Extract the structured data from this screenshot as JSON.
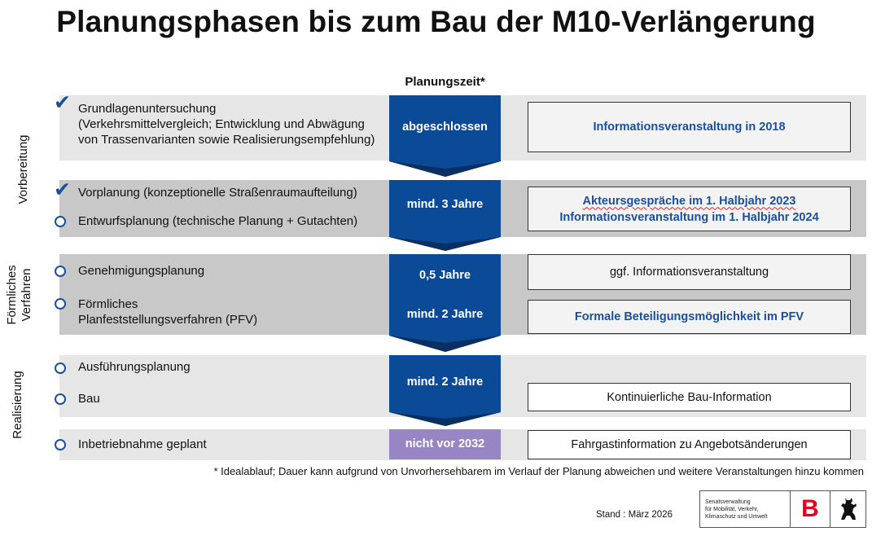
{
  "title": "Planungsphasen bis zum Bau der M10-Verlängerung",
  "timeline_header": "Planungszeit*",
  "sections": {
    "vorbereitung": "Vorbereitung",
    "foermlich_line1": "Förmliches",
    "foermlich_line2": "Verfahren",
    "realisierung": "Realisierung"
  },
  "steps": [
    {
      "status": "done",
      "lines": [
        "Grundlagenuntersuchung",
        "(Verkehrsmittelvergleich; Entwicklung und Abwägung",
        "von Trassenvarianten sowie Realisierungsempfehlung)"
      ]
    },
    {
      "status": "done",
      "lines": [
        "Vorplanung (konzeptionelle Straßenraumaufteilung)"
      ]
    },
    {
      "status": "open",
      "lines": [
        "Entwurfsplanung (technische Planung + Gutachten)"
      ]
    },
    {
      "status": "open",
      "lines": [
        "Genehmigungsplanung"
      ]
    },
    {
      "status": "open",
      "lines": [
        "Förmliches",
        "Planfeststellungsverfahren (PFV)"
      ]
    },
    {
      "status": "open",
      "lines": [
        "Ausführungsplanung"
      ]
    },
    {
      "status": "open",
      "lines": [
        "Bau"
      ]
    },
    {
      "status": "open",
      "lines": [
        "Inbetriebnahme geplant"
      ]
    }
  ],
  "durations": [
    "abgeschlossen",
    "mind. 3 Jahre",
    "0,5 Jahre",
    "mind. 2 Jahre",
    "mind. 2 Jahre",
    "nicht vor 2032"
  ],
  "participation": [
    {
      "style": "blue",
      "lines": [
        "Informationsveranstaltung in 2018"
      ]
    },
    {
      "style": "blue",
      "lines": [
        "Akteursgespräche im 1. Halbjahr 2023",
        "Informationsveranstaltung im 1. Halbjahr 2024"
      ]
    },
    {
      "style": "plain",
      "lines": [
        "ggf. Informationsveranstaltung"
      ]
    },
    {
      "style": "blue",
      "lines": [
        "Formale Beteiligungsmöglichkeit im PFV"
      ]
    },
    {
      "style": "plain",
      "lines": [
        "Kontinuierliche Bau-Information"
      ]
    },
    {
      "style": "plain",
      "lines": [
        "Fahrgastinformation zu Angebotsänderungen"
      ]
    }
  ],
  "footnote": "* Idealablauf; Dauer kann aufgrund von Unvorhersehbarem im Verlauf der Planung abweichen und weitere Veranstaltungen hinzu kommen",
  "stand": "Stand : März 2026",
  "logo": {
    "line1": "Senatsverwaltung",
    "line2": "für Mobilität, Verkehr,",
    "line3": "Klimaschutz und Umwelt",
    "mark": "B",
    "icon": "berlin-bear-icon"
  },
  "colors": {
    "arrow_blue": "#0b4a96",
    "arrow_shadow": "#0a2f62",
    "pending_purple": "#9785c4",
    "check_blue": "#1b4f9c"
  }
}
